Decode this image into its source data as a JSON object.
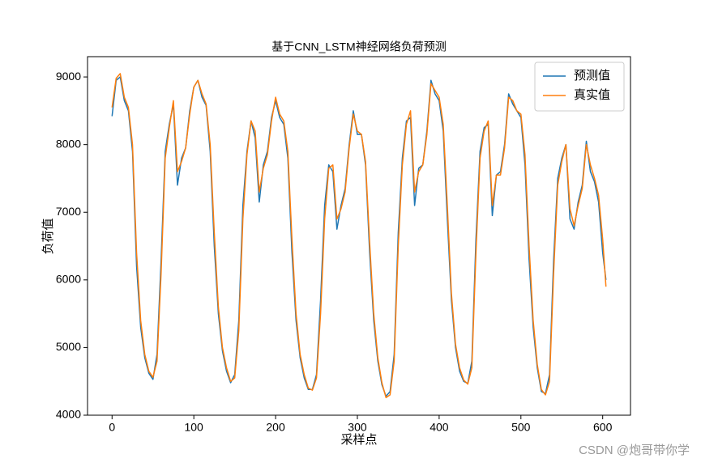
{
  "chart_data": {
    "type": "line",
    "title": "基于CNN_LSTM神经网络负荷预测",
    "xlabel": "采样点",
    "ylabel": "负荷值",
    "x": [
      0,
      5,
      10,
      15,
      20,
      25,
      30,
      35,
      40,
      45,
      50,
      55,
      60,
      65,
      70,
      75,
      80,
      85,
      90,
      95,
      100,
      105,
      110,
      115,
      120,
      125,
      130,
      135,
      140,
      145,
      150,
      155,
      160,
      165,
      170,
      175,
      180,
      185,
      190,
      195,
      200,
      205,
      210,
      215,
      220,
      225,
      230,
      235,
      240,
      245,
      250,
      255,
      260,
      265,
      270,
      275,
      280,
      285,
      290,
      295,
      300,
      305,
      310,
      315,
      320,
      325,
      330,
      335,
      340,
      345,
      350,
      355,
      360,
      365,
      370,
      375,
      380,
      385,
      390,
      395,
      400,
      405,
      410,
      415,
      420,
      425,
      430,
      435,
      440,
      445,
      450,
      455,
      460,
      465,
      470,
      475,
      480,
      485,
      490,
      495,
      500,
      505,
      510,
      515,
      520,
      525,
      530,
      535,
      540,
      545,
      550,
      555,
      560,
      565,
      570,
      575,
      580,
      585,
      590,
      595,
      600,
      604
    ],
    "series": [
      {
        "name": "预测值",
        "color": "#1f77b4",
        "values": [
          8420,
          8950,
          9000,
          8650,
          8500,
          7900,
          6200,
          5300,
          4850,
          4620,
          4530,
          4900,
          6300,
          7900,
          8300,
          8600,
          7400,
          7800,
          7950,
          8500,
          8850,
          8950,
          8700,
          8580,
          7900,
          6500,
          5500,
          4950,
          4650,
          4480,
          4600,
          5400,
          7100,
          7900,
          8350,
          8100,
          7150,
          7700,
          7900,
          8400,
          8650,
          8400,
          8300,
          7800,
          6400,
          5400,
          4850,
          4550,
          4380,
          4380,
          4600,
          5700,
          7100,
          7700,
          7600,
          6750,
          7100,
          7350,
          8000,
          8500,
          8150,
          8150,
          7700,
          6400,
          5400,
          4800,
          4450,
          4280,
          4350,
          4900,
          6700,
          7800,
          8350,
          8400,
          7100,
          7650,
          7700,
          8200,
          8950,
          8750,
          8650,
          8200,
          6900,
          5700,
          5000,
          4650,
          4500,
          4470,
          4800,
          6600,
          7900,
          8250,
          8300,
          6950,
          7550,
          7600,
          8000,
          8750,
          8600,
          8500,
          8400,
          7700,
          6300,
          5300,
          4700,
          4350,
          4320,
          4600,
          6300,
          7500,
          7800,
          8000,
          6900,
          6750,
          7150,
          7400,
          8050,
          7600,
          7450,
          7150,
          6400,
          6000
        ]
      },
      {
        "name": "真实值",
        "color": "#ff7f0e",
        "values": [
          8550,
          8980,
          9050,
          8700,
          8550,
          8000,
          6400,
          5400,
          4900,
          4650,
          4560,
          4800,
          6100,
          7800,
          8250,
          8650,
          7600,
          7750,
          7950,
          8450,
          8850,
          8950,
          8750,
          8600,
          8000,
          6700,
          5600,
          5000,
          4700,
          4500,
          4550,
          5250,
          6900,
          7850,
          8350,
          8200,
          7300,
          7650,
          7850,
          8350,
          8700,
          8450,
          8350,
          7900,
          6600,
          5500,
          4900,
          4600,
          4400,
          4370,
          4550,
          5500,
          6900,
          7650,
          7700,
          6900,
          7050,
          7300,
          7950,
          8450,
          8200,
          8150,
          7750,
          6550,
          5500,
          4850,
          4480,
          4260,
          4300,
          4800,
          6500,
          7700,
          8300,
          8500,
          7300,
          7600,
          7700,
          8150,
          8900,
          8800,
          8700,
          8300,
          7100,
          5800,
          5050,
          4700,
          4520,
          4460,
          4700,
          6400,
          7800,
          8200,
          8350,
          7100,
          7550,
          7550,
          7950,
          8700,
          8650,
          8500,
          8450,
          7850,
          6500,
          5400,
          4750,
          4380,
          4300,
          4500,
          6100,
          7400,
          7750,
          8000,
          7050,
          6800,
          7100,
          7350,
          8000,
          7700,
          7500,
          7250,
          6600,
          5900
        ]
      }
    ],
    "xlim": [
      -30,
      634
    ],
    "ylim": [
      4000,
      9300
    ],
    "xticks": [
      0,
      100,
      200,
      300,
      400,
      500,
      600
    ],
    "yticks": [
      4000,
      5000,
      6000,
      7000,
      8000,
      9000
    ],
    "legend": "upper right",
    "grid": false
  },
  "watermark": "CSDN @炮哥带你学"
}
